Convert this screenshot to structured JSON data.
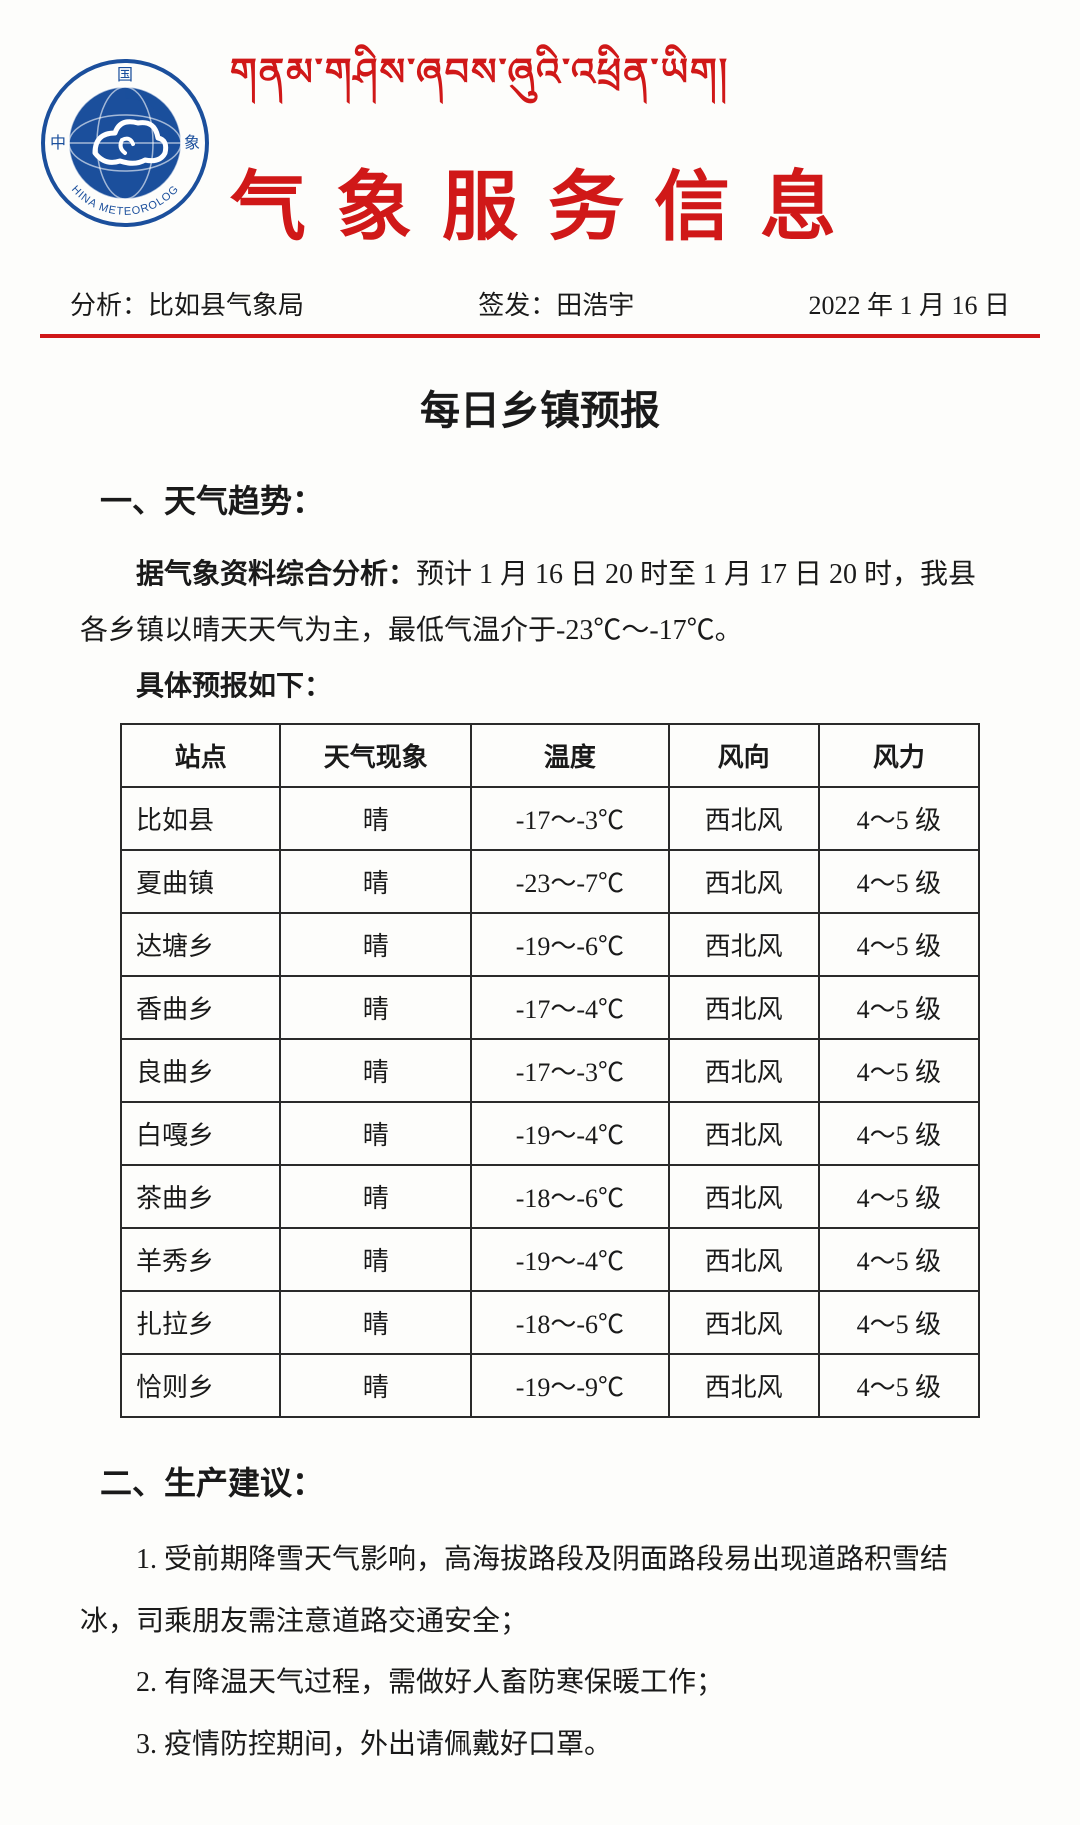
{
  "header": {
    "tibetan_title": "གནམ་གཤིས་ཞབས་ཞུའི་འཕྲིན་ཡིག།",
    "cn_title": "气象服务信息",
    "logo_top_text": "国",
    "logo_bottom_text": "CHINA METEOROLOGY",
    "logo_left": "中",
    "logo_right": "象"
  },
  "meta": {
    "analysis_label": "分析：",
    "analysis_value": "比如县气象局",
    "sign_label": "签发：",
    "sign_value": "田浩宇",
    "date": "2022 年 1 月 16 日"
  },
  "report_title": "每日乡镇预报",
  "section1": {
    "heading": "一、天气趋势：",
    "lead": "据气象资料综合分析：",
    "body": "预计 1 月 16 日 20 时至 1 月 17 日 20 时，我县各乡镇以晴天天气为主，最低气温介于-23℃～-17℃。",
    "table_intro": "具体预报如下："
  },
  "forecast_table": {
    "columns": [
      "站点",
      "天气现象",
      "温度",
      "风向",
      "风力"
    ],
    "rows": [
      [
        "比如县",
        "晴",
        "-17～-3℃",
        "西北风",
        "4～5 级"
      ],
      [
        "夏曲镇",
        "晴",
        "-23～-7℃",
        "西北风",
        "4～5 级"
      ],
      [
        "达塘乡",
        "晴",
        "-19～-6℃",
        "西北风",
        "4～5 级"
      ],
      [
        "香曲乡",
        "晴",
        "-17～-4℃",
        "西北风",
        "4～5 级"
      ],
      [
        "良曲乡",
        "晴",
        "-17～-3℃",
        "西北风",
        "4～5 级"
      ],
      [
        "白嘎乡",
        "晴",
        "-19～-4℃",
        "西北风",
        "4～5 级"
      ],
      [
        "茶曲乡",
        "晴",
        "-18～-6℃",
        "西北风",
        "4～5 级"
      ],
      [
        "羊秀乡",
        "晴",
        "-19～-4℃",
        "西北风",
        "4～5 级"
      ],
      [
        "扎拉乡",
        "晴",
        "-18～-6℃",
        "西北风",
        "4～5 级"
      ],
      [
        "恰则乡",
        "晴",
        "-19～-9℃",
        "西北风",
        "4～5 级"
      ]
    ],
    "border_color": "#2a2a2a",
    "cell_fontsize": 26
  },
  "section2": {
    "heading": "二、生产建议：",
    "items": [
      "1. 受前期降雪天气影响，高海拔路段及阴面路段易出现道路积雪结冰，司乘朋友需注意道路交通安全；",
      "2. 有降温天气过程，需做好人畜防寒保暖工作；",
      "3. 疫情防控期间，外出请佩戴好口罩。"
    ]
  },
  "colors": {
    "brand_red": "#d01818",
    "text": "#1a1a1a",
    "background": "#fdfdfb",
    "logo_blue": "#1b4f9c",
    "logo_white": "#ffffff"
  }
}
